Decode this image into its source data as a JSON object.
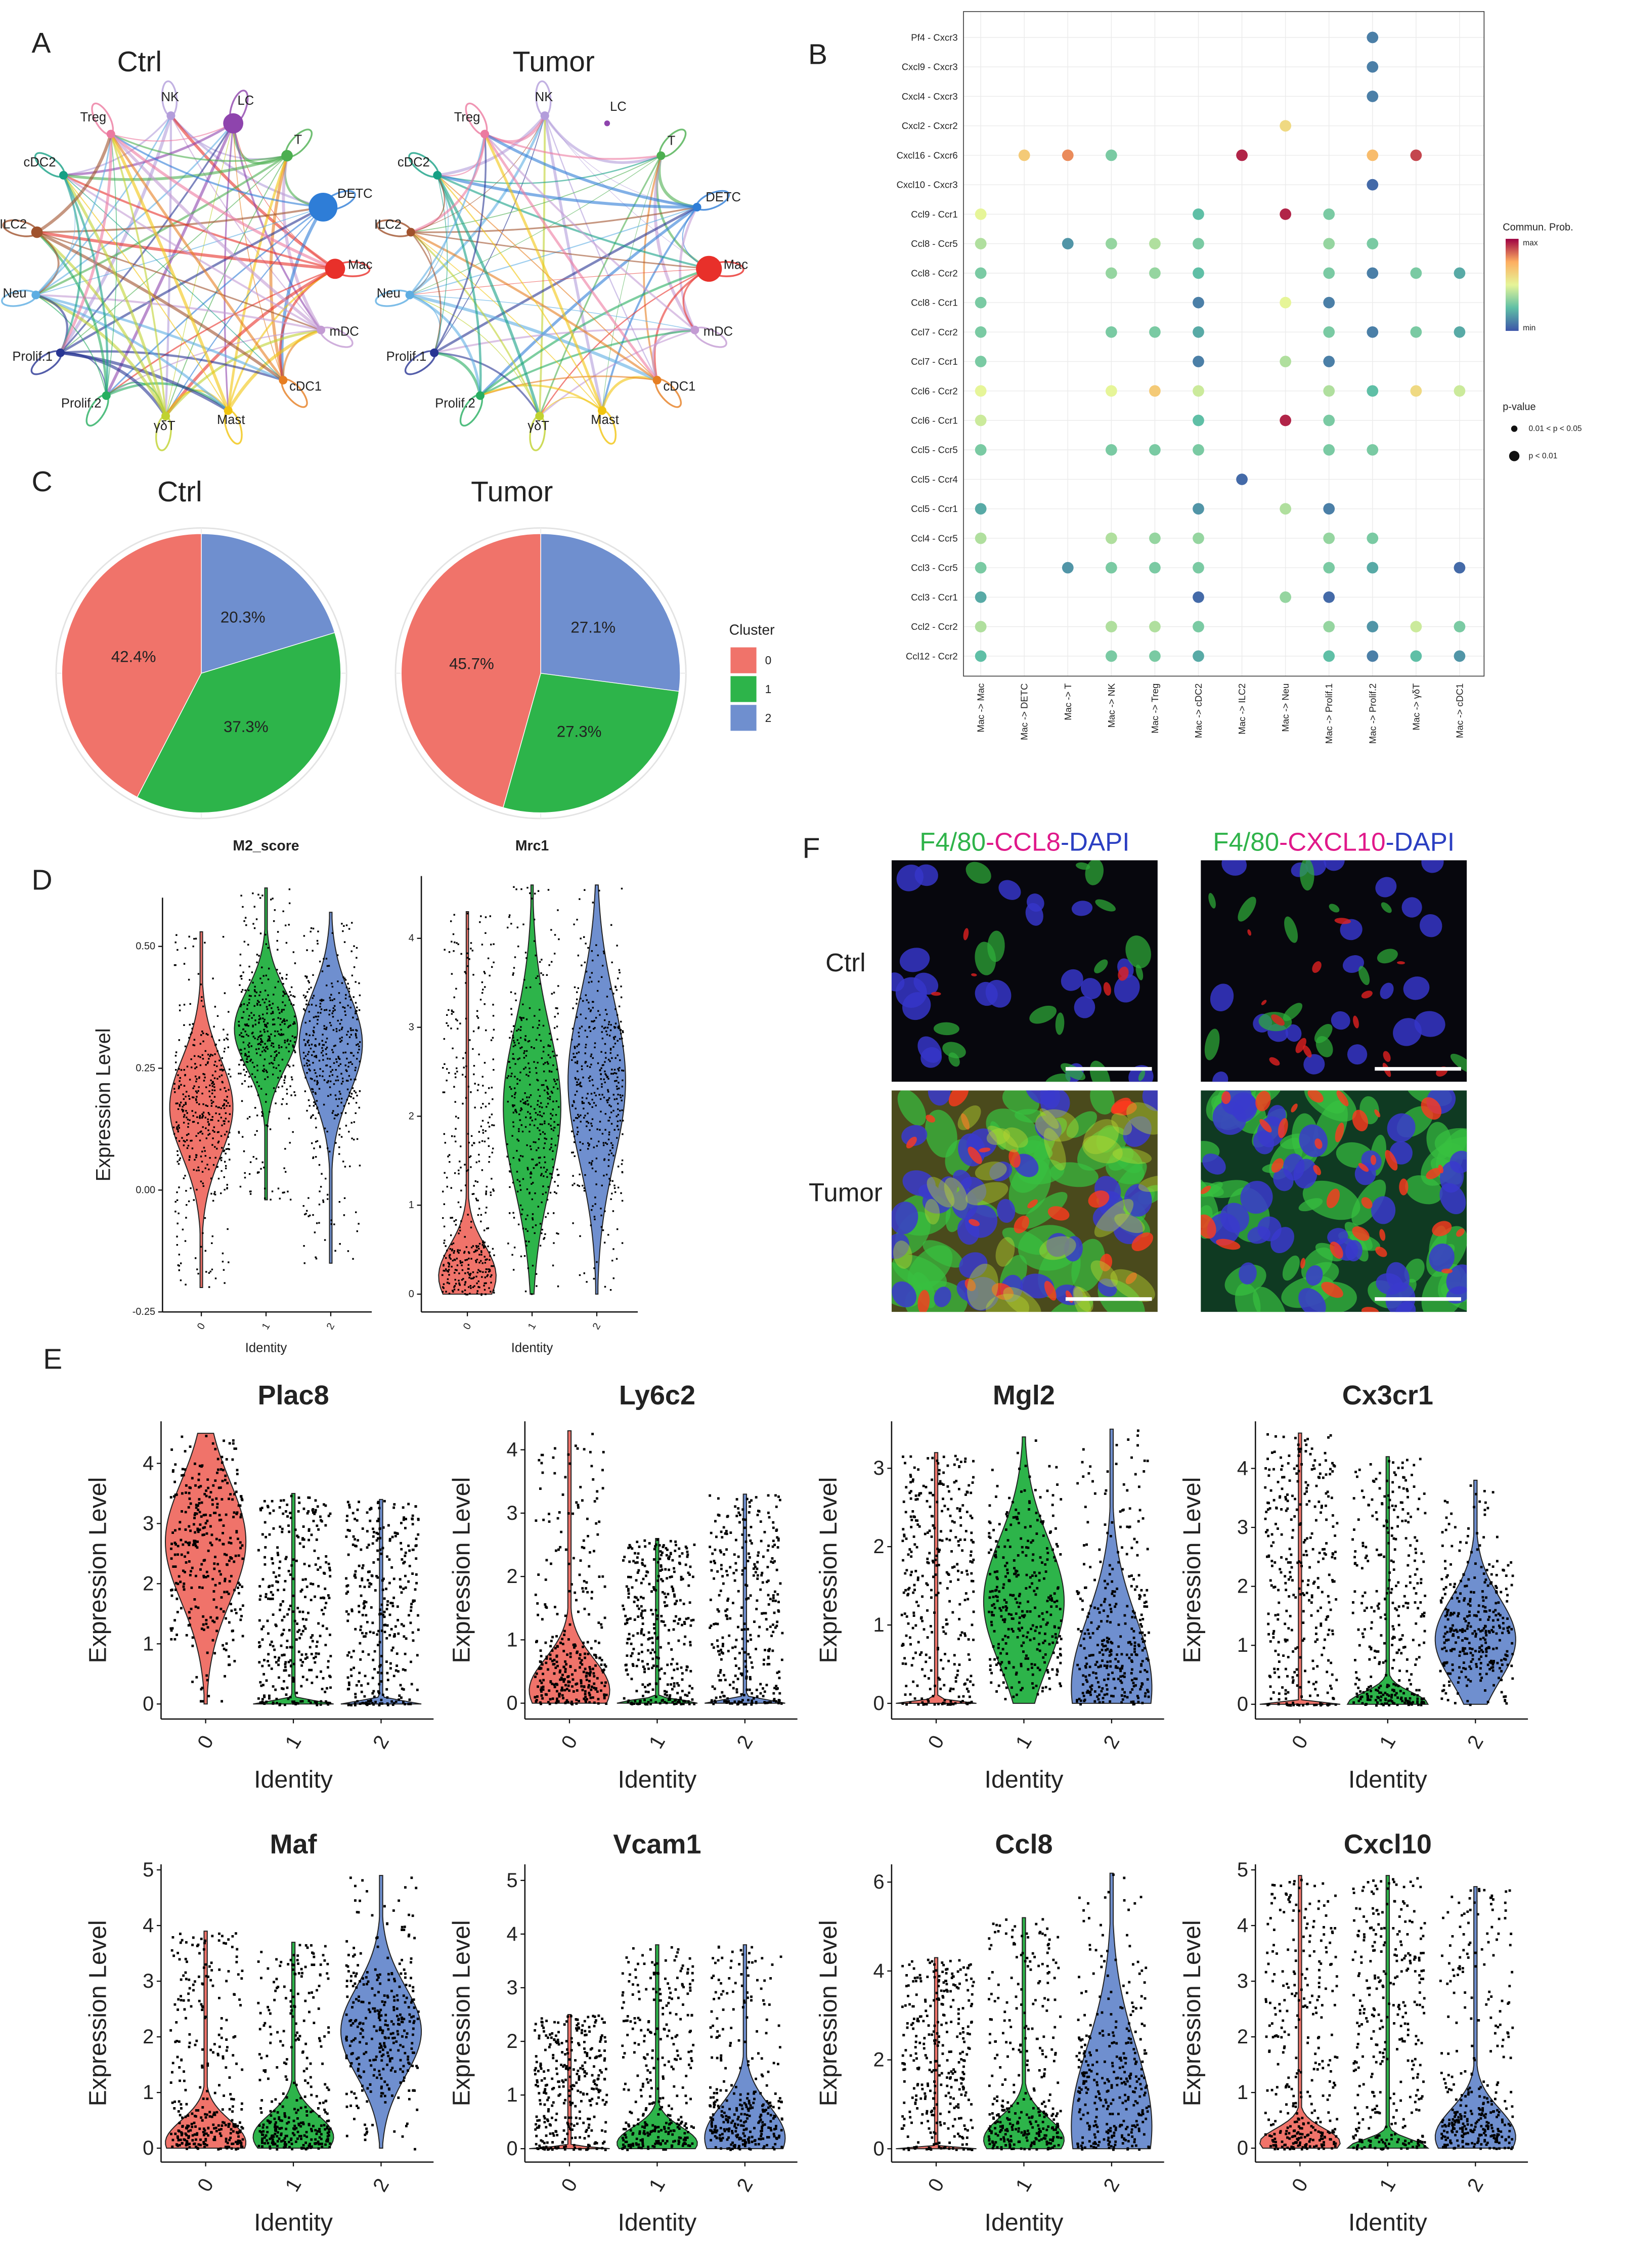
{
  "panel_labels": [
    "A",
    "B",
    "C",
    "D",
    "E",
    "F"
  ],
  "chart_data": [
    {
      "type": "network",
      "title": "Ctrl",
      "nodes": [
        "NK",
        "LC",
        "T",
        "DETC",
        "Mac",
        "mDC",
        "cDC1",
        "Mast",
        "γδT",
        "Prolif.2",
        "Prolif.1",
        "Neu",
        "ILC2",
        "cDC2",
        "Treg"
      ],
      "node_colors": [
        "#b39ddb",
        "#8e44ad",
        "#4caf50",
        "#2e7dd7",
        "#e8302a",
        "#c39bd3",
        "#e67e22",
        "#f1c40f",
        "#c0d230",
        "#27ae60",
        "#283593",
        "#5dade2",
        "#a0522d",
        "#16a085",
        "#ec7aa0"
      ],
      "node_sizes": [
        3,
        7,
        4,
        10,
        7,
        3,
        3,
        3,
        3,
        3,
        3,
        3,
        4,
        3,
        3
      ]
    },
    {
      "type": "network",
      "title": "Tumor",
      "nodes": [
        "NK",
        "LC",
        "T",
        "DETC",
        "Mac",
        "mDC",
        "cDC1",
        "Mast",
        "γδT",
        "Prolif.2",
        "Prolif.1",
        "Neu",
        "ILC2",
        "cDC2",
        "Treg"
      ],
      "node_colors": [
        "#b39ddb",
        "#8e44ad",
        "#4caf50",
        "#2e7dd7",
        "#e8302a",
        "#c39bd3",
        "#e67e22",
        "#f1c40f",
        "#c0d230",
        "#27ae60",
        "#283593",
        "#5dade2",
        "#a0522d",
        "#16a085",
        "#ec7aa0"
      ],
      "node_sizes": [
        3,
        2,
        3,
        3,
        9,
        3,
        3,
        3,
        3,
        3,
        3,
        3,
        3,
        3,
        3
      ]
    },
    {
      "type": "dotplot",
      "x_categories": [
        "Mac -> Mac",
        "Mac -> DETC",
        "Mac -> T",
        "Mac -> NK",
        "Mac -> Treg",
        "Mac -> cDC2",
        "Mac -> ILC2",
        "Mac -> Neu",
        "Mac -> Prolif.1",
        "Mac -> Prolif.2",
        "Mac -> γδT",
        "Mac -> cDC1"
      ],
      "y_categories": [
        "Pf4 - Cxcr3",
        "Cxcl9 - Cxcr3",
        "Cxcl4 - Cxcr3",
        "Cxcl2 - Cxcr2",
        "Cxcl16 - Cxcr6",
        "Cxcl10 - Cxcr3",
        "Ccl9 - Ccr1",
        "Ccl8 - Ccr5",
        "Ccl8 - Ccr2",
        "Ccl8 - Ccr1",
        "Ccl7 - Ccr2",
        "Ccl7 - Ccr1",
        "Ccl6 - Ccr2",
        "Ccl6 - Ccr1",
        "Ccl5 - Ccr5",
        "Ccl5 - Ccr4",
        "Ccl5 - Ccr1",
        "Ccl4 - Ccr5",
        "Ccl3 - Ccr5",
        "Ccl3 - Ccr1",
        "Ccl2 - Ccr2",
        "Ccl12 - Ccr2"
      ],
      "values": [
        [
          null,
          null,
          null,
          null,
          null,
          null,
          null,
          null,
          null,
          0.1,
          null,
          null
        ],
        [
          null,
          null,
          null,
          null,
          null,
          null,
          null,
          null,
          null,
          0.1,
          null,
          null
        ],
        [
          null,
          null,
          null,
          null,
          null,
          null,
          null,
          null,
          null,
          0.1,
          null,
          null
        ],
        [
          null,
          null,
          null,
          null,
          null,
          null,
          null,
          0.6,
          null,
          null,
          null,
          null
        ],
        [
          null,
          0.65,
          0.8,
          0.3,
          null,
          null,
          0.95,
          null,
          null,
          0.7,
          0.9,
          null
        ],
        [
          null,
          null,
          null,
          null,
          null,
          null,
          null,
          null,
          null,
          0.05,
          null,
          null
        ],
        [
          0.5,
          null,
          null,
          null,
          null,
          0.25,
          null,
          0.95,
          0.3,
          null,
          null,
          null
        ],
        [
          0.4,
          null,
          0.15,
          0.35,
          0.4,
          0.3,
          null,
          null,
          0.35,
          0.3,
          null,
          null
        ],
        [
          0.3,
          null,
          null,
          0.35,
          0.35,
          0.25,
          null,
          null,
          0.3,
          0.1,
          0.3,
          0.2
        ],
        [
          0.3,
          null,
          null,
          null,
          null,
          0.1,
          null,
          0.5,
          0.1,
          null,
          null,
          null
        ],
        [
          0.3,
          null,
          null,
          0.3,
          0.3,
          0.2,
          null,
          null,
          0.3,
          0.1,
          0.3,
          0.2
        ],
        [
          0.3,
          null,
          null,
          null,
          null,
          0.1,
          null,
          0.4,
          0.1,
          null,
          null,
          null
        ],
        [
          0.5,
          null,
          null,
          0.5,
          0.65,
          0.45,
          null,
          null,
          0.4,
          0.25,
          0.6,
          0.45
        ],
        [
          0.45,
          null,
          null,
          null,
          null,
          0.25,
          null,
          0.95,
          0.3,
          null,
          null,
          null
        ],
        [
          0.3,
          null,
          null,
          0.3,
          0.3,
          0.3,
          null,
          null,
          0.3,
          0.3,
          null,
          null
        ],
        [
          null,
          null,
          null,
          null,
          null,
          null,
          0.05,
          null,
          null,
          null,
          null,
          null
        ],
        [
          0.2,
          null,
          null,
          null,
          null,
          0.15,
          null,
          0.4,
          0.1,
          null,
          null,
          null
        ],
        [
          0.4,
          null,
          null,
          0.4,
          0.35,
          0.35,
          null,
          null,
          0.35,
          0.3,
          null,
          null
        ],
        [
          0.3,
          null,
          0.15,
          0.3,
          0.3,
          0.3,
          null,
          null,
          0.3,
          0.2,
          null,
          0.05
        ],
        [
          0.2,
          null,
          null,
          null,
          null,
          0.05,
          null,
          0.35,
          0.05,
          null,
          null,
          null
        ],
        [
          0.4,
          null,
          null,
          0.4,
          0.4,
          0.3,
          null,
          null,
          0.35,
          0.15,
          0.45,
          0.3
        ],
        [
          0.25,
          null,
          null,
          0.3,
          0.3,
          0.2,
          null,
          null,
          0.25,
          0.1,
          0.25,
          0.15
        ]
      ],
      "colormap": [
        "#3d55a8",
        "#5fbfa6",
        "#e6f598",
        "#fdae61",
        "#9e0142"
      ],
      "legend_title": "Commun. Prob.",
      "legend_max": "max",
      "legend_min": "min",
      "size_title": "p-value",
      "size_labels": [
        "0.01 < p < 0.05",
        "p < 0.01"
      ]
    },
    {
      "type": "pie",
      "title": "Ctrl",
      "values": [
        42.4,
        37.3,
        20.3
      ],
      "value_labels": [
        "42.4%",
        "37.3%",
        "20.3%"
      ],
      "colors": [
        "#f0736a",
        "#2db44a",
        "#6f8fcf"
      ]
    },
    {
      "type": "pie",
      "title": "Tumor",
      "values": [
        45.7,
        27.3,
        27.1
      ],
      "value_labels": [
        "45.7%",
        "27.3%",
        "27.1%"
      ],
      "colors": [
        "#f0736a",
        "#2db44a",
        "#6f8fcf"
      ],
      "categories": [
        "0",
        "1",
        "2"
      ],
      "legend_title": "Cluster"
    },
    {
      "type": "violin",
      "title": "M2_score",
      "categories": [
        "0",
        "1",
        "2"
      ],
      "colors": [
        "#f0736a",
        "#2db44a",
        "#6f8fcf"
      ],
      "violins": [
        {
          "min": -0.2,
          "max": 0.53,
          "peak": 0.17,
          "spread": 0.1
        },
        {
          "min": -0.02,
          "max": 0.62,
          "peak": 0.33,
          "spread": 0.08
        },
        {
          "min": -0.15,
          "max": 0.57,
          "peak": 0.3,
          "spread": 0.1
        }
      ],
      "ylim": [
        -0.25,
        0.6
      ],
      "yticks": [
        {
          "value": -0.25,
          "label": "-0.25"
        },
        {
          "value": 0,
          "label": "0.00"
        },
        {
          "value": 0.25,
          "label": "0.25"
        },
        {
          "value": 0.5,
          "label": "0.50"
        }
      ],
      "x_label": "Identity",
      "y_label": "Expression Level"
    },
    {
      "type": "violin",
      "title": "Mrc1",
      "categories": [
        "0",
        "1",
        "2"
      ],
      "colors": [
        "#f0736a",
        "#2db44a",
        "#6f8fcf"
      ],
      "violins": [
        {
          "min": 0,
          "max": 4.3,
          "peak": 0.2,
          "spread": 0.35
        },
        {
          "min": 0,
          "max": 4.6,
          "peak": 2.1,
          "spread": 0.9
        },
        {
          "min": 0,
          "max": 4.6,
          "peak": 2.4,
          "spread": 0.9
        }
      ],
      "ylim": [
        -0.2,
        4.7
      ],
      "yticks": [
        0,
        1,
        2,
        3,
        4
      ],
      "x_label": "Identity"
    },
    {
      "type": "violin",
      "title": "Plac8",
      "categories": [
        "0",
        "1",
        "2"
      ],
      "colors": [
        "#f0736a",
        "#2db44a",
        "#6f8fcf"
      ],
      "violins": [
        {
          "min": 0,
          "max": 4.5,
          "peak": 2.7,
          "spread": 1.0
        },
        {
          "min": 0,
          "max": 3.5,
          "peak": 0,
          "spread": 0.05
        },
        {
          "min": 0,
          "max": 3.4,
          "peak": 0,
          "spread": 0.05
        }
      ],
      "ylim": [
        -0.25,
        4.7
      ],
      "yticks": [
        0,
        1,
        2,
        3,
        4
      ],
      "x_label": "Identity",
      "y_label": "Expression Level"
    },
    {
      "type": "violin",
      "title": "Ly6c2",
      "categories": [
        "0",
        "1",
        "2"
      ],
      "colors": [
        "#f0736a",
        "#2db44a",
        "#6f8fcf"
      ],
      "violins": [
        {
          "min": 0,
          "max": 4.3,
          "peak": 0.2,
          "spread": 0.5
        },
        {
          "min": 0,
          "max": 2.6,
          "peak": 0,
          "spread": 0.05
        },
        {
          "min": 0,
          "max": 3.3,
          "peak": 0,
          "spread": 0.05
        }
      ],
      "ylim": [
        -0.25,
        4.45
      ],
      "yticks": [
        0,
        1,
        2,
        3,
        4
      ],
      "x_label": "Identity",
      "y_label": "Expression Level"
    },
    {
      "type": "violin",
      "title": "Mgl2",
      "categories": [
        "0",
        "1",
        "2"
      ],
      "colors": [
        "#f0736a",
        "#2db44a",
        "#6f8fcf"
      ],
      "violins": [
        {
          "min": 0,
          "max": 3.2,
          "peak": 0,
          "spread": 0.03
        },
        {
          "min": 0,
          "max": 3.4,
          "peak": 1.3,
          "spread": 0.8
        },
        {
          "min": 0,
          "max": 3.5,
          "peak": 0.2,
          "spread": 0.9
        }
      ],
      "ylim": [
        -0.2,
        3.6
      ],
      "yticks": [
        0,
        1,
        2,
        3
      ],
      "x_label": "Identity",
      "y_label": "Expression Level"
    },
    {
      "type": "violin",
      "title": "Cx3cr1",
      "categories": [
        "0",
        "1",
        "2"
      ],
      "colors": [
        "#f0736a",
        "#2db44a",
        "#6f8fcf"
      ],
      "violins": [
        {
          "min": 0,
          "max": 4.6,
          "peak": 0,
          "spread": 0.03
        },
        {
          "min": 0,
          "max": 4.2,
          "peak": 0,
          "spread": 0.2
        },
        {
          "min": 0,
          "max": 3.8,
          "peak": 1.1,
          "spread": 0.7
        }
      ],
      "ylim": [
        -0.25,
        4.8
      ],
      "yticks": [
        0,
        1,
        2,
        3,
        4
      ],
      "x_label": "Identity",
      "y_label": "Expression Level"
    },
    {
      "type": "violin",
      "title": "Maf",
      "categories": [
        "0",
        "1",
        "2"
      ],
      "colors": [
        "#f0736a",
        "#2db44a",
        "#6f8fcf"
      ],
      "violins": [
        {
          "min": 0,
          "max": 3.9,
          "peak": 0.1,
          "spread": 0.4
        },
        {
          "min": 0,
          "max": 3.7,
          "peak": 0.2,
          "spread": 0.4
        },
        {
          "min": 0,
          "max": 4.9,
          "peak": 2.1,
          "spread": 0.8
        }
      ],
      "ylim": [
        -0.25,
        5.1
      ],
      "yticks": [
        0,
        1,
        2,
        3,
        4,
        5
      ],
      "x_label": "Identity",
      "y_label": "Expression Level"
    },
    {
      "type": "violin",
      "title": "Vcam1",
      "categories": [
        "0",
        "1",
        "2"
      ],
      "colors": [
        "#f0736a",
        "#2db44a",
        "#6f8fcf"
      ],
      "violins": [
        {
          "min": 0,
          "max": 2.5,
          "peak": 0,
          "spread": 0.03
        },
        {
          "min": 0,
          "max": 3.8,
          "peak": 0.1,
          "spread": 0.3
        },
        {
          "min": 0,
          "max": 3.8,
          "peak": 0.2,
          "spread": 0.6
        }
      ],
      "ylim": [
        -0.25,
        5.3
      ],
      "yticks": [
        0,
        1,
        2,
        3,
        4,
        5
      ],
      "x_label": "Identity",
      "y_label": "Expression Level"
    },
    {
      "type": "violin",
      "title": "Ccl8",
      "categories": [
        "0",
        "1",
        "2"
      ],
      "colors": [
        "#f0736a",
        "#2db44a",
        "#6f8fcf"
      ],
      "violins": [
        {
          "min": 0,
          "max": 4.3,
          "peak": 0,
          "spread": 0.03
        },
        {
          "min": 0,
          "max": 5.2,
          "peak": 0.2,
          "spread": 0.5
        },
        {
          "min": 0,
          "max": 6.2,
          "peak": 0.5,
          "spread": 1.8
        }
      ],
      "ylim": [
        -0.3,
        6.4
      ],
      "yticks": [
        0,
        2,
        4,
        6
      ],
      "x_label": "Identity",
      "y_label": "Expression Level"
    },
    {
      "type": "violin",
      "title": "Cxcl10",
      "categories": [
        "0",
        "1",
        "2"
      ],
      "colors": [
        "#f0736a",
        "#2db44a",
        "#6f8fcf"
      ],
      "violins": [
        {
          "min": 0,
          "max": 4.9,
          "peak": 0.1,
          "spread": 0.25
        },
        {
          "min": 0,
          "max": 4.9,
          "peak": 0,
          "spread": 0.15
        },
        {
          "min": 0,
          "max": 4.7,
          "peak": 0.2,
          "spread": 0.5
        }
      ],
      "ylim": [
        -0.25,
        5.1
      ],
      "yticks": [
        0,
        1,
        2,
        3,
        4,
        5
      ],
      "x_label": "Identity",
      "y_label": "Expression Level"
    }
  ],
  "image_panel": {
    "titles": [
      [
        "F4/80",
        "-CCL8",
        "-DAPI"
      ],
      [
        "F4/80",
        "-CXCL10",
        "-DAPI"
      ]
    ],
    "title_colors": [
      "#2fb34a",
      "#e0198a",
      "#2b3fc2"
    ],
    "rows": [
      "Ctrl",
      "Tumor"
    ]
  }
}
